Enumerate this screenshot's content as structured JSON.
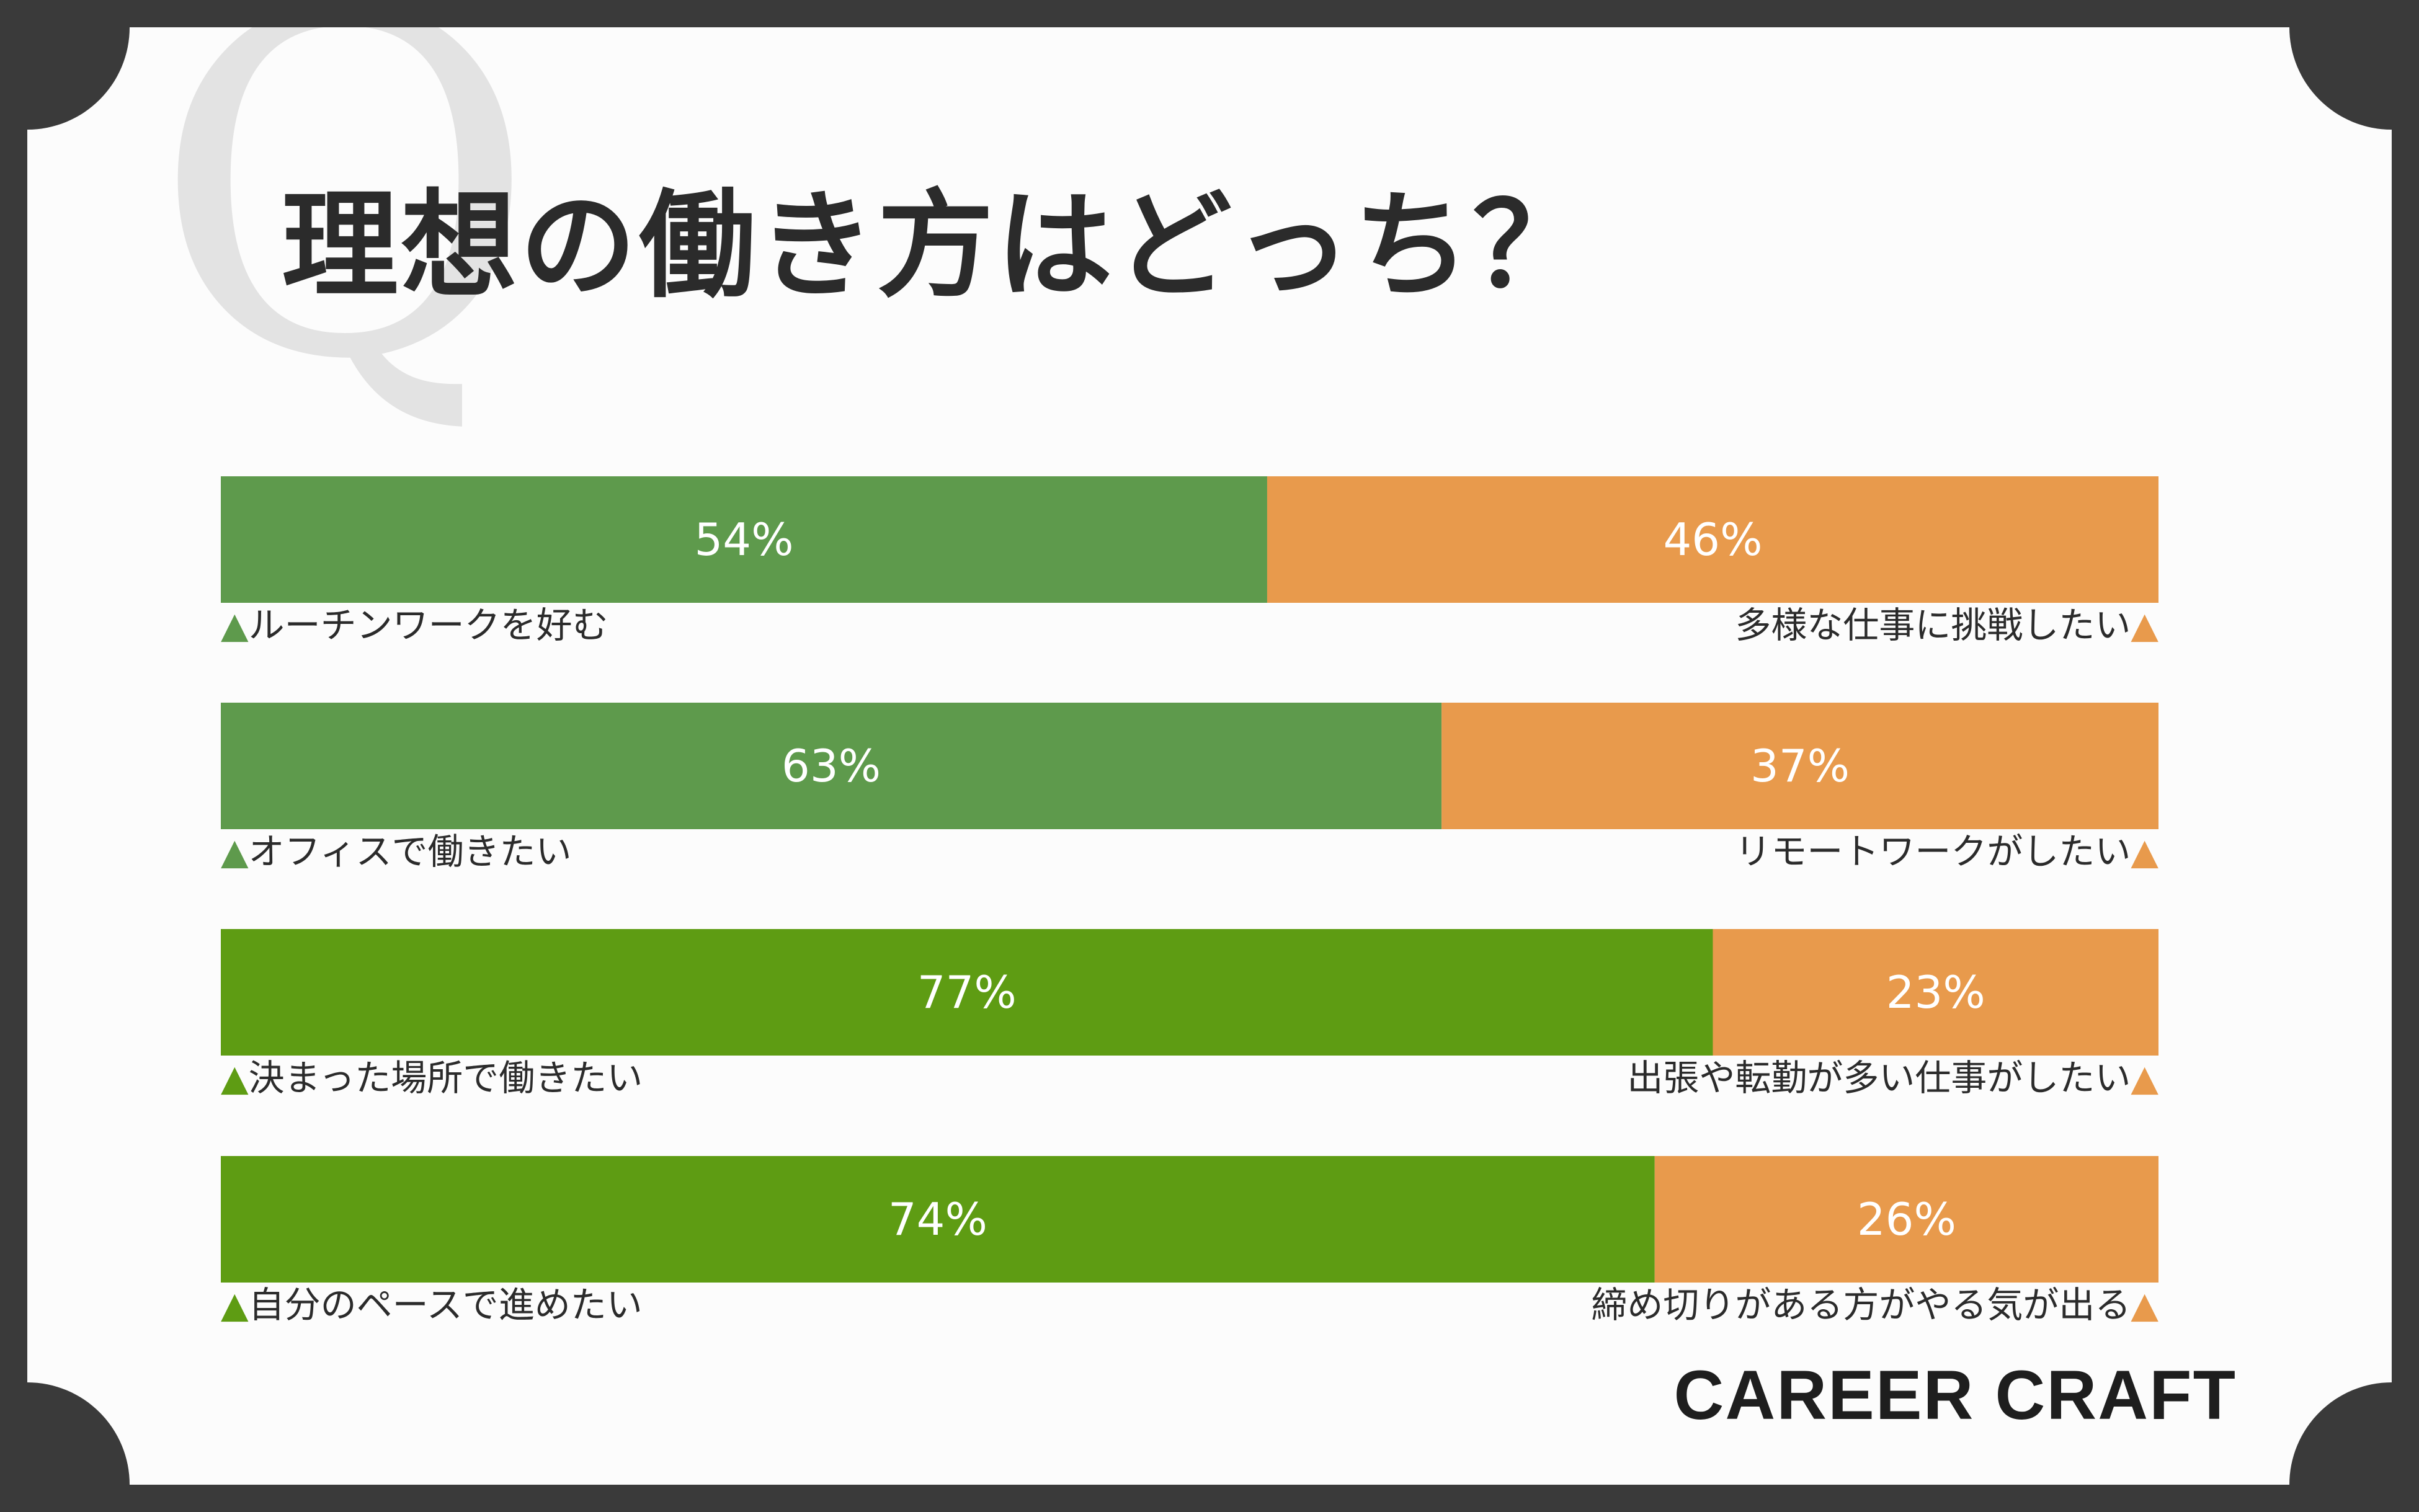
{
  "title": "理想の働き方はどっち？",
  "decoration_letter": "Q",
  "logo": "CAREER CRAFT",
  "colors": {
    "left_pale": "#5e9a4c",
    "left_strong": "#5e9c13",
    "right": "#e89a4c",
    "label_text": "#2b2b2b",
    "bar_text": "#ffffff"
  },
  "chart_data": {
    "type": "bar",
    "orientation": "horizontal-stacked-100",
    "title": "理想の働き方はどっち？",
    "rows": [
      {
        "left_label": "▲ルーチンワークを好む",
        "right_label": "多様な仕事に挑戦したい▲",
        "left_value": 54,
        "right_value": 46,
        "left_text": "54%",
        "right_text": "46%",
        "left_color": "#5e9a4c"
      },
      {
        "left_label": "▲オフィスで働きたい",
        "right_label": "リモートワークがしたい▲",
        "left_value": 63,
        "right_value": 37,
        "left_text": "63%",
        "right_text": "37%",
        "left_color": "#5e9a4c"
      },
      {
        "left_label": "▲決まった場所で働きたい",
        "right_label": "出張や転勤が多い仕事がしたい▲",
        "left_value": 77,
        "right_value": 23,
        "left_text": "77%",
        "right_text": "23%",
        "left_color": "#5e9c13"
      },
      {
        "left_label": "▲自分のペースで進めたい",
        "right_label": "締め切りがある方がやる気が出る▲",
        "left_value": 74,
        "right_value": 26,
        "left_text": "74%",
        "right_text": "26%",
        "left_color": "#5e9c13"
      }
    ],
    "xlim": [
      0,
      100
    ],
    "grid": false,
    "legend": "none"
  }
}
